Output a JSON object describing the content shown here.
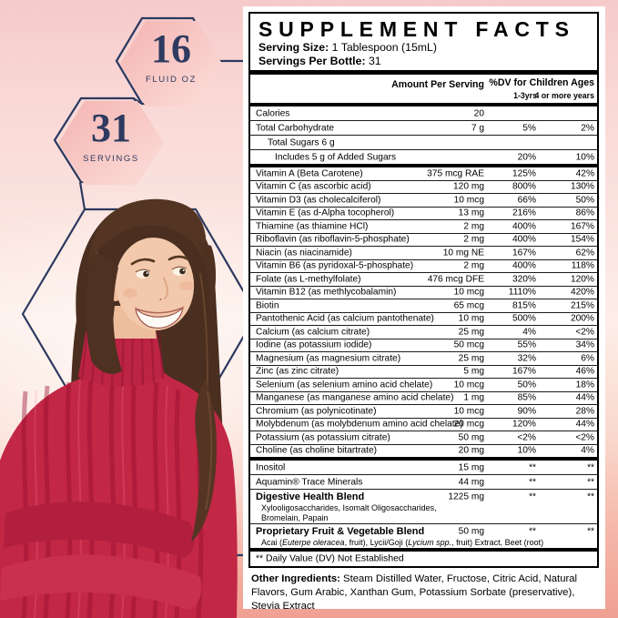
{
  "badges": {
    "fluid_oz": {
      "value": "16",
      "label": "FLUID OZ"
    },
    "servings": {
      "value": "31",
      "label": "SERVINGS"
    }
  },
  "panel": {
    "title": "SUPPLEMENT FACTS",
    "serving_size_label": "Serving Size:",
    "serving_size_value": "1 Tablespoon (15mL)",
    "servings_label": "Servings Per Bottle:",
    "servings_value": "31",
    "columns": {
      "amount": "Amount Per Serving",
      "dv": "%DV for Children Ages",
      "dv_sub1": "1-3yrs",
      "dv_sub2": "4 or more years"
    },
    "sections": [
      {
        "rows": [
          {
            "name": "Calories",
            "amount": "20"
          },
          {
            "name": "Total Carbohydrate",
            "amount": "7 g",
            "dv1": "5%",
            "dv2": "2%"
          },
          {
            "name": "Total Sugars  6 g",
            "indent": 13
          },
          {
            "name": "Includes 5 g of Added Sugars",
            "indent": 21,
            "dv1": "20%",
            "dv2": "10%"
          }
        ]
      },
      {
        "rows": [
          {
            "name": "Vitamin A (Beta Carotene)",
            "amount": "375 mcg RAE",
            "dv1": "125%",
            "dv2": "42%"
          },
          {
            "name": "Vitamin C (as ascorbic acid)",
            "amount": "120 mg",
            "dv1": "800%",
            "dv2": "130%"
          },
          {
            "name": "Vitamin D3 (as cholecalciferol)",
            "amount": "10 mcg",
            "dv1": "66%",
            "dv2": "50%"
          },
          {
            "name": "Vitamin E (as d-Alpha tocopherol)",
            "amount": "13 mg",
            "dv1": "216%",
            "dv2": "86%"
          },
          {
            "name": "Thiamine (as thiamine HCl)",
            "amount": "2 mg",
            "dv1": "400%",
            "dv2": "167%"
          },
          {
            "name": "Riboflavin (as riboflavin-5-phosphate)",
            "amount": "2 mg",
            "dv1": "400%",
            "dv2": "154%"
          },
          {
            "name": "Niacin (as niacinamide)",
            "amount": "10 mg NE",
            "dv1": "167%",
            "dv2": "62%"
          },
          {
            "name": "Vitamin B6 (as pyridoxal-5-phosphate)",
            "amount": "2 mg",
            "dv1": "400%",
            "dv2": "118%"
          },
          {
            "name": "Folate (as L-methylfolate)",
            "amount": "476 mcg DFE",
            "dv1": "320%",
            "dv2": "120%"
          },
          {
            "name": "Vitamin B12 (as methlycobalamin)",
            "amount": "10 mcg",
            "dv1": "1110%",
            "dv2": "420%"
          },
          {
            "name": "Biotin",
            "amount": "65 mcg",
            "dv1": "815%",
            "dv2": "215%"
          },
          {
            "name": "Pantothenic Acid (as calcium pantothenate)",
            "amount": "10 mg",
            "dv1": "500%",
            "dv2": "200%"
          },
          {
            "name": "Calcium (as calcium citrate)",
            "amount": "25 mg",
            "dv1": "4%",
            "dv2": "<2%"
          },
          {
            "name": "Iodine (as potassium iodide)",
            "amount": "50 mcg",
            "dv1": "55%",
            "dv2": "34%"
          },
          {
            "name": "Magnesium (as magnesium citrate)",
            "amount": "25 mg",
            "dv1": "32%",
            "dv2": "6%"
          },
          {
            "name": "Zinc (as zinc citrate)",
            "amount": "5 mg",
            "dv1": "167%",
            "dv2": "46%"
          },
          {
            "name": "Selenium (as selenium amino acid chelate)",
            "amount": "10 mcg",
            "dv1": "50%",
            "dv2": "18%"
          },
          {
            "name": "Manganese (as manganese amino acid chelate)",
            "amount": "1 mg",
            "dv1": "85%",
            "dv2": "44%"
          },
          {
            "name": "Chromium (as polynicotinate)",
            "amount": "10 mcg",
            "dv1": "90%",
            "dv2": "28%"
          },
          {
            "name": "Molybdenum (as molybdenum amino acid chelate)",
            "amount": "20 mcg",
            "dv1": "120%",
            "dv2": "44%"
          },
          {
            "name": "Potassium (as potassium citrate)",
            "amount": "50 mg",
            "dv1": "<2%",
            "dv2": "<2%"
          },
          {
            "name": "Choline (as choline bitartrate)",
            "amount": "20 mg",
            "dv1": "10%",
            "dv2": "4%"
          }
        ]
      },
      {
        "rows": [
          {
            "name": "Inositol",
            "amount": "15 mg",
            "dv1": "**",
            "dv2": "**"
          },
          {
            "name": "Aquamin® Trace Minerals",
            "amount": "44 mg",
            "dv1": "**",
            "dv2": "**"
          },
          {
            "name": "Digestive Health Blend",
            "bold": true,
            "amount": "1225 mg",
            "dv1": "**",
            "dv2": "**",
            "subs": [
              [
                {
                  "t": "Xylooligosaccharides, Isomalt Oligosaccharides,"
                }
              ],
              [
                {
                  "t": "Bromelain, Papain"
                }
              ]
            ]
          },
          {
            "name": "Proprietary Fruit & Vegetable Blend",
            "bold": true,
            "amount": "50 mg",
            "dv1": "**",
            "dv2": "**",
            "subs": [
              [
                {
                  "t": "Acai ("
                },
                {
                  "t": "Euterpe oleracea",
                  "i": true
                },
                {
                  "t": ", fruit), Lycii/Goji ("
                },
                {
                  "t": "Lycium spp.",
                  "i": true
                },
                {
                  "t": ", fruit) Extract, Beet (root)"
                }
              ]
            ]
          }
        ]
      }
    ],
    "footnote": "** Daily Value (DV) Not Established",
    "other_label": "Other Ingredients:",
    "other_text": " Steam Distilled Water, Fructose, Citric Acid, Natural Flavors, Gum Arabic, Xanthan Gum, Potassium Sorbate (preservative), Stevia Extract"
  },
  "colors": {
    "accent_navy": "#2e3a5f",
    "hex_pink_light": "#fcdeda",
    "hex_pink_dark": "#f4b6b3",
    "background_top": "#f6caca",
    "background_bottom": "#f0a093",
    "sweater_red": "#c22745",
    "panel_white": "#ffffff",
    "rule_black": "#000000"
  }
}
